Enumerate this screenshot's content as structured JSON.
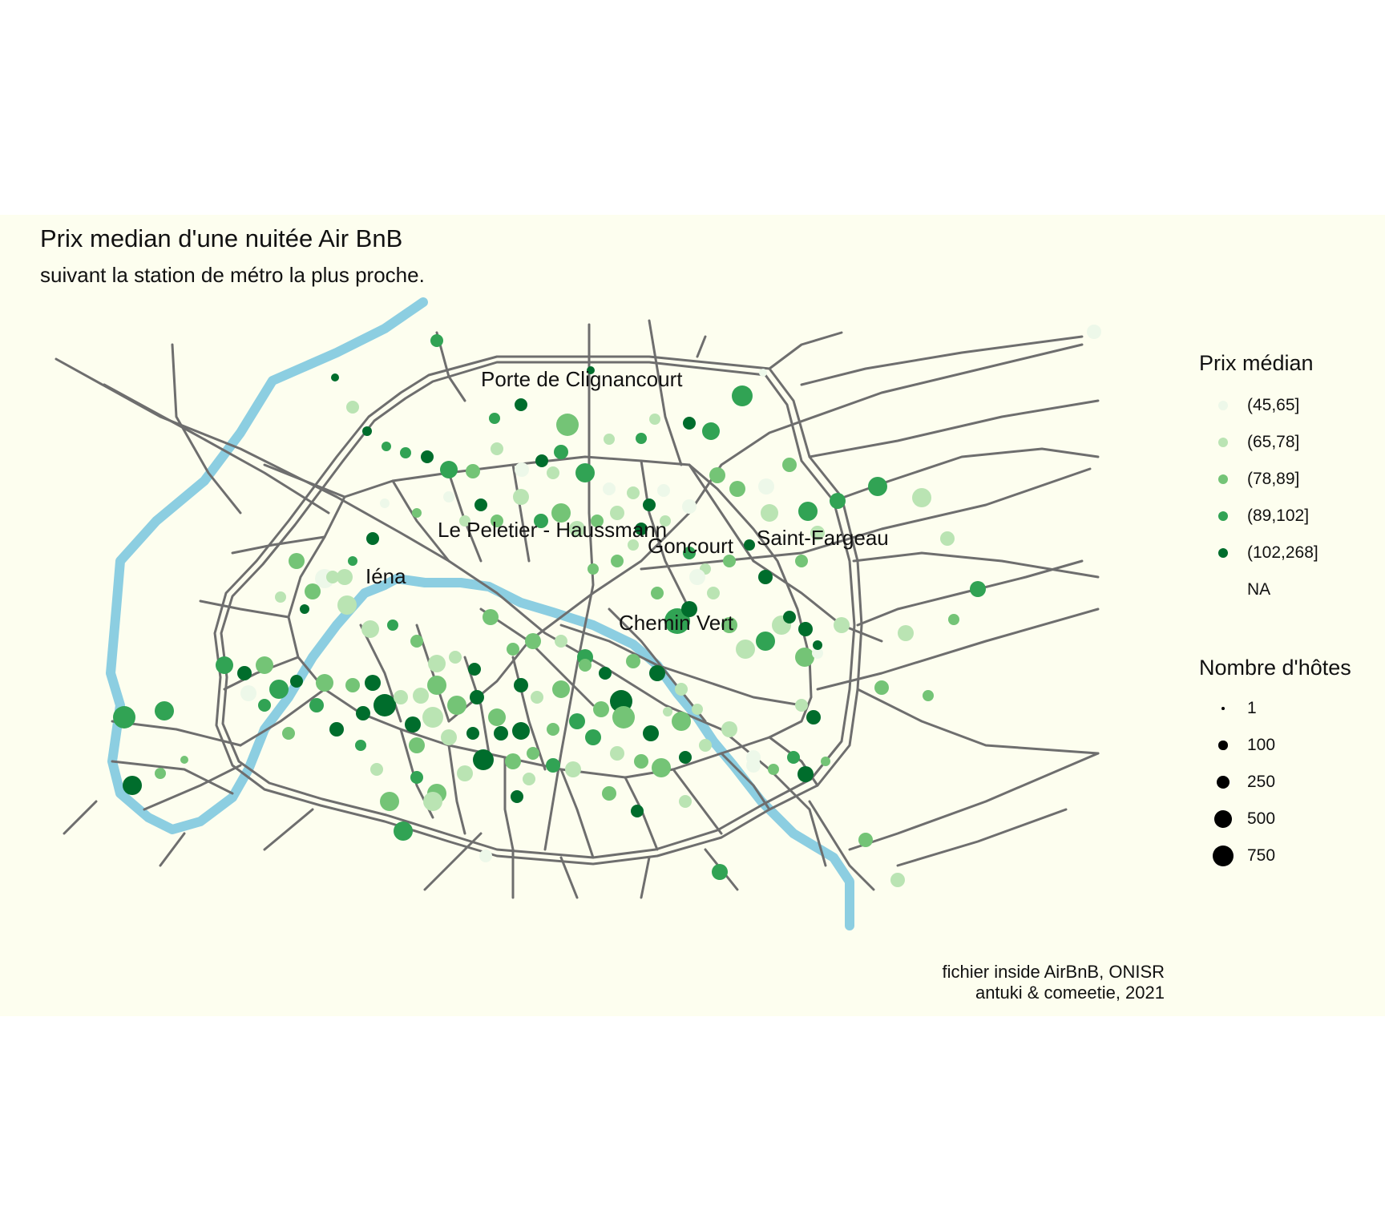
{
  "title": "Prix median d'une nuitée Air BnB",
  "subtitle": "suivant la station de métro la plus proche.",
  "caption": {
    "line1": "fichier inside AirBnB, ONISR",
    "line2": "antuki & comeetie, 2021"
  },
  "colors": {
    "background": "#fdfeef",
    "river": "#8ccee1",
    "roads": "#6e6e6e",
    "classes": [
      "#edf8e9",
      "#bae4b3",
      "#74c476",
      "#31a354",
      "#006d2c"
    ]
  },
  "stations": [
    {
      "name": "Porte de Clignancourt"
    },
    {
      "name": "Le Peletier - Haussmann"
    },
    {
      "name": "Goncourt"
    },
    {
      "name": "Saint-Fargeau"
    },
    {
      "name": "Iéna"
    },
    {
      "name": "Chemin Vert"
    }
  ],
  "legend_color": {
    "title": "Prix médian",
    "items": [
      {
        "label": "(45,65]",
        "color": "#edf8e9"
      },
      {
        "label": "(65,78]",
        "color": "#bae4b3"
      },
      {
        "label": "(78,89]",
        "color": "#74c476"
      },
      {
        "label": "(89,102]",
        "color": "#31a354"
      },
      {
        "label": "(102,268]",
        "color": "#006d2c"
      },
      {
        "label": "NA",
        "color": ""
      }
    ]
  },
  "legend_size": {
    "title": "Nombre d'hôtes",
    "items": [
      {
        "label": "1",
        "value": 1
      },
      {
        "label": "100",
        "value": 100
      },
      {
        "label": "250",
        "value": 250
      },
      {
        "label": "500",
        "value": 500
      },
      {
        "label": "750",
        "value": 750
      }
    ]
  }
}
